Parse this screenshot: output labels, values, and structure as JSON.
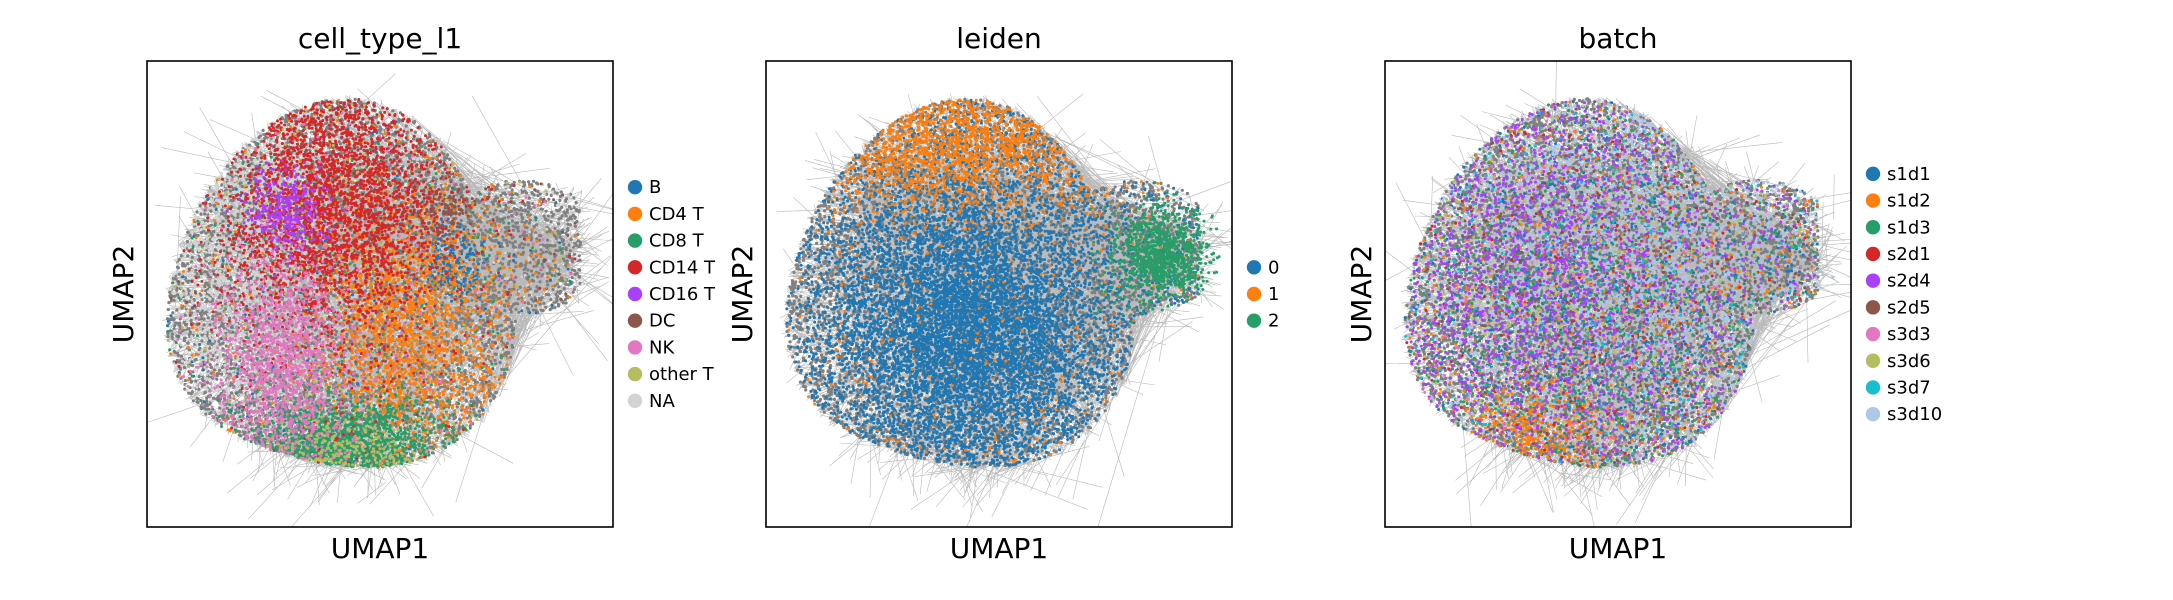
{
  "chart_data": [
    {
      "type": "scatter",
      "title": "cell_type_l1",
      "xlabel": "UMAP1",
      "ylabel": "UMAP2",
      "legend_position": "right",
      "edge_color": "#808080",
      "legend": [
        {
          "name": "B",
          "color": "#1f77b4"
        },
        {
          "name": "CD4 T",
          "color": "#ff7f0e"
        },
        {
          "name": "CD8 T",
          "color": "#279e68"
        },
        {
          "name": "CD14 T",
          "color": "#d62728"
        },
        {
          "name": "CD16 T",
          "color": "#aa40fc"
        },
        {
          "name": "DC",
          "color": "#8c564b"
        },
        {
          "name": "NK",
          "color": "#e377c2"
        },
        {
          "name": "other T",
          "color": "#b5bd61"
        },
        {
          "name": "NA",
          "color": "#d3d3d3"
        }
      ]
    },
    {
      "type": "scatter",
      "title": "leiden",
      "xlabel": "UMAP1",
      "ylabel": "UMAP2",
      "legend_position": "right",
      "edge_color": "#808080",
      "legend": [
        {
          "name": "0",
          "color": "#1f77b4"
        },
        {
          "name": "1",
          "color": "#ff7f0e"
        },
        {
          "name": "2",
          "color": "#279e68"
        }
      ]
    },
    {
      "type": "scatter",
      "title": "batch",
      "xlabel": "UMAP1",
      "ylabel": "UMAP2",
      "legend_position": "right",
      "edge_color": "#808080",
      "legend": [
        {
          "name": "s1d1",
          "color": "#1f77b4"
        },
        {
          "name": "s1d2",
          "color": "#ff7f0e"
        },
        {
          "name": "s1d3",
          "color": "#279e68"
        },
        {
          "name": "s2d1",
          "color": "#d62728"
        },
        {
          "name": "s2d4",
          "color": "#aa40fc"
        },
        {
          "name": "s2d5",
          "color": "#8c564b"
        },
        {
          "name": "s3d3",
          "color": "#e377c2"
        },
        {
          "name": "s3d6",
          "color": "#b5bd61"
        },
        {
          "name": "s3d7",
          "color": "#17becf"
        },
        {
          "name": "s3d10",
          "color": "#aec7e8"
        }
      ]
    }
  ]
}
